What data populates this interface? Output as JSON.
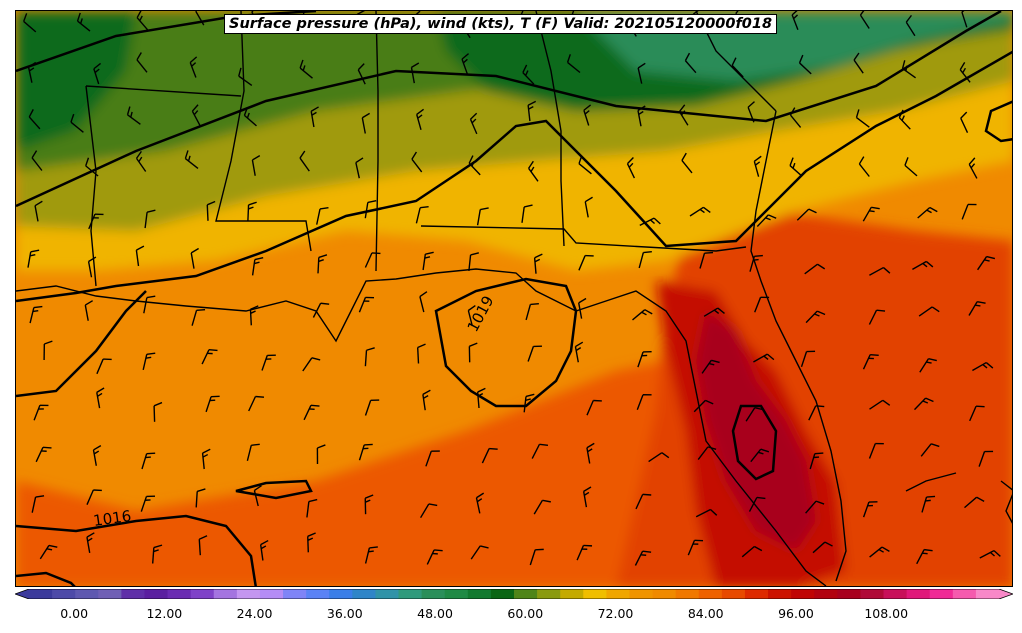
{
  "title": "Surface pressure (hPa), wind (kts), T (F) Valid: 202105120000f018",
  "contour_labels": [
    {
      "id": "c1019",
      "text": "1019"
    },
    {
      "id": "c1016",
      "text": "1016"
    }
  ],
  "colorbar": {
    "tick_labels": [
      "0.00",
      "12.00",
      "24.00",
      "36.00",
      "48.00",
      "60.00",
      "72.00",
      "84.00",
      "96.00",
      "108.00"
    ],
    "tick_values": [
      0,
      12,
      24,
      36,
      48,
      60,
      72,
      84,
      96,
      108
    ],
    "min": -6,
    "max": 123,
    "colors": [
      "#3b3a9c",
      "#4d4aa8",
      "#5e58b0",
      "#6f5fb5",
      "#5f2fa8",
      "#5a1fa0",
      "#6a2bb2",
      "#7f42c8",
      "#a474e0",
      "#c496f0",
      "#b48cf5",
      "#7f84f7",
      "#5a82f5",
      "#3a7ee8",
      "#2f85c8",
      "#3093a8",
      "#2f9a7c",
      "#2a8f5a",
      "#1f8a45",
      "#127a30",
      "#0a6614",
      "#4f8518",
      "#8a9a0f",
      "#c4aa00",
      "#f0be00",
      "#f0a600",
      "#f09400",
      "#f08a00",
      "#f07800",
      "#ee6200",
      "#e84a00",
      "#de2a00",
      "#cc1200",
      "#c00404",
      "#b20210",
      "#a8001e",
      "#b00a38",
      "#c8105a",
      "#e0187a",
      "#f02a96",
      "#f55aae",
      "#f888c8"
    ]
  }
}
